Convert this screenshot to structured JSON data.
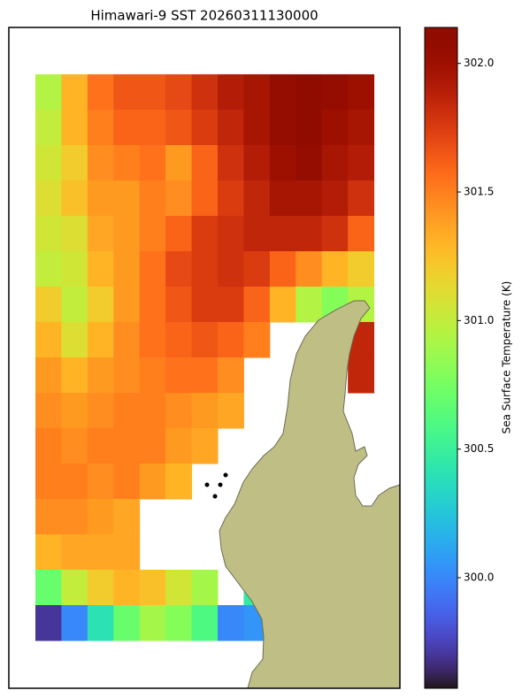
{
  "chart_data": {
    "type": "heatmap",
    "title": "Himawari-9 SST 20260311130000",
    "colorbar_label": "Sea Surface Temperature (K)",
    "colormap": "turbo",
    "clim": [
      299.57,
      302.14
    ],
    "cticks": [
      {
        "value": 300,
        "label": "300.0"
      },
      {
        "value": 300.5,
        "label": "300.5"
      },
      {
        "value": 301,
        "label": "301.0"
      },
      {
        "value": 301.5,
        "label": "301.5"
      },
      {
        "value": 302,
        "label": "302.0"
      }
    ],
    "values": [
      [
        300.95,
        301.3,
        301.55,
        301.65,
        301.65,
        301.7,
        301.8,
        301.9,
        301.95,
        302.05,
        302.1,
        302.05,
        302.0,
        null
      ],
      [
        301.0,
        301.3,
        301.5,
        301.6,
        301.6,
        301.65,
        301.75,
        301.85,
        301.95,
        302.05,
        302.1,
        302.0,
        301.95,
        null
      ],
      [
        301.05,
        301.2,
        301.45,
        301.5,
        301.55,
        301.4,
        301.6,
        301.8,
        301.9,
        302.0,
        302.05,
        301.95,
        301.9,
        null
      ],
      [
        301.1,
        301.25,
        301.4,
        301.4,
        301.5,
        301.45,
        301.6,
        301.75,
        301.85,
        301.95,
        301.95,
        301.9,
        301.8,
        null
      ],
      [
        301.05,
        301.1,
        301.35,
        301.4,
        301.5,
        301.6,
        301.75,
        301.8,
        301.85,
        301.85,
        301.85,
        301.8,
        301.6,
        null
      ],
      [
        301.0,
        301.05,
        301.3,
        301.4,
        301.55,
        301.7,
        301.75,
        301.8,
        301.75,
        301.6,
        301.45,
        301.3,
        301.2,
        null
      ],
      [
        301.2,
        301.0,
        301.2,
        301.4,
        301.55,
        301.65,
        301.75,
        301.75,
        301.6,
        301.3,
        300.95,
        300.8,
        300.95,
        null
      ],
      [
        301.3,
        301.1,
        301.3,
        301.45,
        301.55,
        301.6,
        301.65,
        301.6,
        301.5,
        null,
        null,
        null,
        301.85,
        null
      ],
      [
        301.4,
        301.3,
        301.4,
        301.45,
        301.5,
        301.55,
        301.55,
        301.45,
        null,
        null,
        null,
        null,
        301.85,
        null
      ],
      [
        301.45,
        301.4,
        301.45,
        301.5,
        301.5,
        301.45,
        301.4,
        301.35,
        null,
        null,
        null,
        null,
        null,
        null
      ],
      [
        301.5,
        301.45,
        301.5,
        301.5,
        301.5,
        301.4,
        301.35,
        null,
        null,
        null,
        null,
        null,
        null,
        null
      ],
      [
        301.5,
        301.5,
        301.45,
        301.5,
        301.4,
        301.3,
        null,
        null,
        null,
        null,
        null,
        null,
        null,
        null
      ],
      [
        301.45,
        301.45,
        301.4,
        301.35,
        null,
        null,
        null,
        null,
        null,
        null,
        null,
        null,
        null,
        null
      ],
      [
        301.3,
        301.35,
        301.35,
        301.35,
        null,
        null,
        null,
        null,
        null,
        null,
        null,
        null,
        null,
        null
      ],
      [
        300.7,
        301.0,
        301.2,
        301.3,
        301.25,
        301.05,
        300.9,
        null,
        300.45,
        null,
        null,
        null,
        null,
        null
      ],
      [
        299.7,
        300.0,
        300.4,
        300.7,
        300.9,
        300.8,
        300.6,
        300.0,
        300.05,
        null,
        null,
        null,
        null,
        null
      ]
    ]
  }
}
